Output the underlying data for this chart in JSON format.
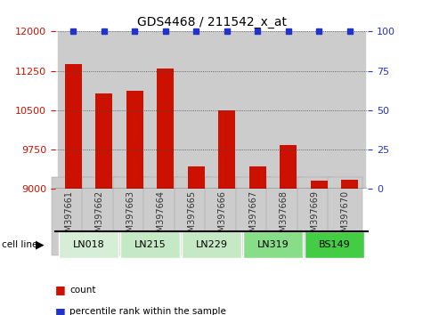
{
  "title": "GDS4468 / 211542_x_at",
  "samples": [
    "GSM397661",
    "GSM397662",
    "GSM397663",
    "GSM397664",
    "GSM397665",
    "GSM397666",
    "GSM397667",
    "GSM397668",
    "GSM397669",
    "GSM397670"
  ],
  "counts": [
    11380,
    10820,
    10870,
    11300,
    9430,
    10500,
    9430,
    9840,
    9160,
    9180
  ],
  "percentiles": [
    100,
    100,
    100,
    100,
    100,
    100,
    100,
    100,
    100,
    100
  ],
  "cell_lines": [
    {
      "name": "LN018",
      "start": 0,
      "end": 1,
      "color": "#d5eed5"
    },
    {
      "name": "LN215",
      "start": 2,
      "end": 3,
      "color": "#c5e8c5"
    },
    {
      "name": "LN229",
      "start": 4,
      "end": 5,
      "color": "#c5e8c5"
    },
    {
      "name": "LN319",
      "start": 6,
      "end": 7,
      "color": "#88dd88"
    },
    {
      "name": "BS149",
      "start": 8,
      "end": 9,
      "color": "#44cc44"
    }
  ],
  "ylim_left": [
    9000,
    12000
  ],
  "ylim_right": [
    0,
    100
  ],
  "yticks_left": [
    9000,
    9750,
    10500,
    11250,
    12000
  ],
  "yticks_right": [
    0,
    25,
    50,
    75,
    100
  ],
  "bar_color": "#cc1100",
  "dot_color": "#2233cc",
  "bar_width": 0.55,
  "sample_bg_color": "#cccccc",
  "grid_color": "#444444"
}
